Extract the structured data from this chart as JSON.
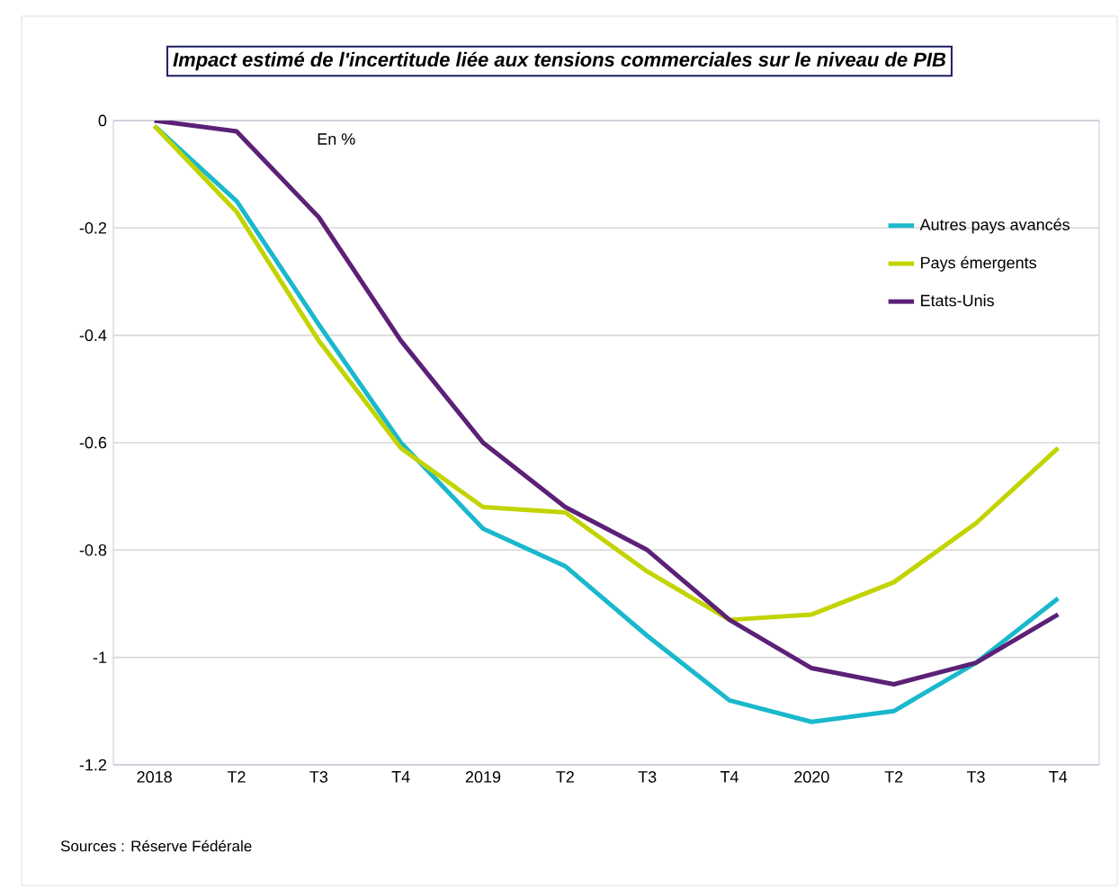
{
  "chart_data": {
    "type": "line",
    "title": "Impact estimé de l'incertitude liée aux tensions commerciales sur le niveau de PIB",
    "categories": [
      "2018",
      "T2",
      "T3",
      "T4",
      "2019",
      "T2",
      "T3",
      "T4",
      "2020",
      "T2",
      "T3",
      "T4"
    ],
    "series": [
      {
        "name": "Autres pays avancés",
        "color": "#1ab8cc",
        "values": [
          -0.01,
          -0.15,
          -0.38,
          -0.6,
          -0.76,
          -0.83,
          -0.96,
          -1.08,
          -1.12,
          -1.1,
          -1.01,
          -0.89
        ]
      },
      {
        "name": "Pays émergents",
        "color": "#c2d400",
        "values": [
          -0.01,
          -0.17,
          -0.41,
          -0.61,
          -0.72,
          -0.73,
          -0.84,
          -0.93,
          -0.92,
          -0.86,
          -0.75,
          -0.61
        ]
      },
      {
        "name": "Etats-Unis",
        "color": "#5c2176",
        "values": [
          0.0,
          -0.02,
          -0.18,
          -0.41,
          -0.6,
          -0.72,
          -0.8,
          -0.93,
          -1.02,
          -1.05,
          -1.01,
          -0.92
        ]
      }
    ],
    "ylim": [
      -1.2,
      0
    ],
    "yticks": [
      0,
      -0.2,
      -0.4,
      -0.6,
      -0.8,
      -1,
      -1.2
    ],
    "grid": "y",
    "legend": "top right",
    "marker": "none",
    "line_style": "solid",
    "annotations": [
      "En %",
      "Sources : Réserve Fédérale"
    ]
  }
}
